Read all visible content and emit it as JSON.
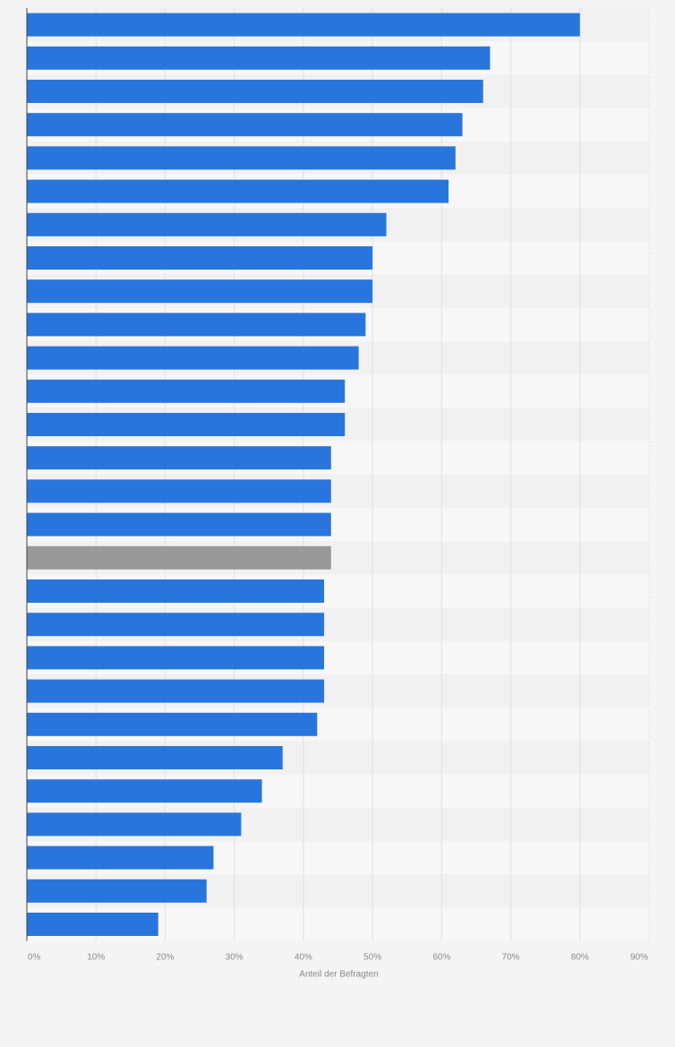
{
  "chart_data": {
    "type": "bar",
    "orientation": "horizontal",
    "xlabel": "Anteil der Befragten",
    "xlim": [
      0,
      90
    ],
    "xticks": [
      0,
      10,
      20,
      30,
      40,
      50,
      60,
      70,
      80,
      90
    ],
    "tick_labels": [
      "0%",
      "10%",
      "20%",
      "30%",
      "40%",
      "50%",
      "60%",
      "70%",
      "80%",
      "90%"
    ],
    "grid": true,
    "values": [
      80,
      67,
      66,
      63,
      62,
      61,
      52,
      50,
      50,
      49,
      48,
      46,
      46,
      44,
      44,
      44,
      44,
      43,
      43,
      43,
      43,
      42,
      37,
      34,
      31,
      27,
      26,
      19
    ],
    "highlight_index": 16,
    "colors": {
      "bar": "#2876dd",
      "highlight": "#999999",
      "band_light": "#f7f7f7",
      "band_dark": "#f1f1f1",
      "grid": "#e0e0e0",
      "axis": "#444444",
      "background": "#f4f4f4"
    }
  }
}
